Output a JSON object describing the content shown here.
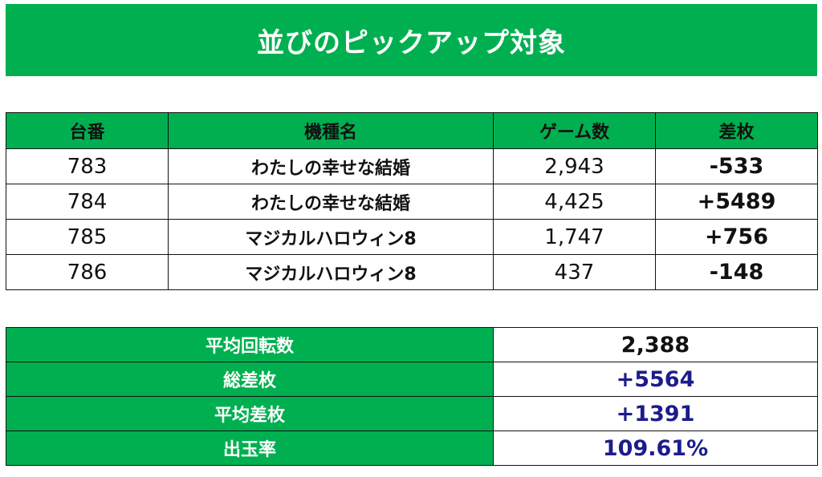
{
  "banner": {
    "title": "並びのピックアップ対象"
  },
  "table": {
    "headers": {
      "machine_no": "台番",
      "model": "機種名",
      "games": "ゲーム数",
      "diff": "差枚"
    },
    "rows": [
      {
        "machine_no": "783",
        "model": "わたしの幸せな結婚",
        "games": "2,943",
        "diff": "-533",
        "sign": "neg"
      },
      {
        "machine_no": "784",
        "model": "わたしの幸せな結婚",
        "games": "4,425",
        "diff": "+5489",
        "sign": "pos"
      },
      {
        "machine_no": "785",
        "model": "マジカルハロウィン8",
        "games": "1,747",
        "diff": "+756",
        "sign": "pos"
      },
      {
        "machine_no": "786",
        "model": "マジカルハロウィン8",
        "games": "437",
        "diff": "-148",
        "sign": "neg"
      }
    ]
  },
  "summary": {
    "avg_spins": {
      "label": "平均回転数",
      "value": "2,388"
    },
    "total_diff": {
      "label": "総差枚",
      "value": "+5564"
    },
    "avg_diff": {
      "label": "平均差枚",
      "value": "+1391"
    },
    "payout_rate": {
      "label": "出玉率",
      "value": "109.61%"
    }
  },
  "colors": {
    "header_green": "#00b050",
    "negative": "#ee0000",
    "positive": "#1c1c8c"
  }
}
